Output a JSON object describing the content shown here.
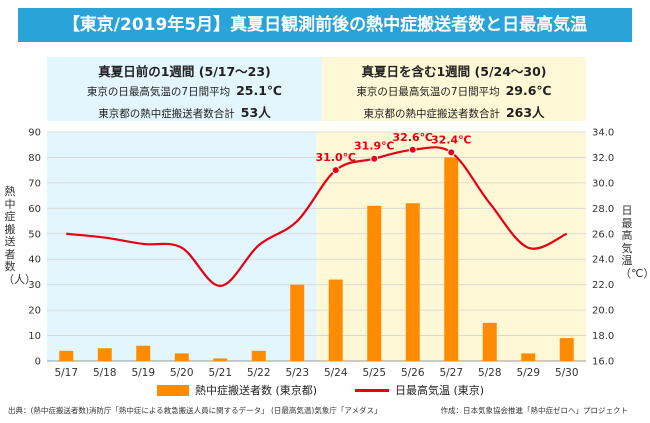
{
  "title": "【東京/2019年5月】真夏日観測前後の熱中症搬送者数と日最高気温",
  "panels": {
    "before": {
      "title": "真夏日前の1週間 (5/17〜23)",
      "temp_label": "東京の日最高気温の7日間平均",
      "temp_value": "25.1℃",
      "count_label": "東京都の熱中症搬送者数合計",
      "count_value": "53人"
    },
    "after": {
      "title": "真夏日を含む1週間 (5/24〜30)",
      "temp_label": "東京の日最高気温の7日間平均",
      "temp_value": "29.6℃",
      "count_label": "東京都の熱中症搬送者数合計",
      "count_value": "263人"
    }
  },
  "chart_data": {
    "type": "bar",
    "categories": [
      "5/17",
      "5/18",
      "5/19",
      "5/20",
      "5/21",
      "5/22",
      "5/23",
      "5/24",
      "5/25",
      "5/26",
      "5/27",
      "5/28",
      "5/29",
      "5/30"
    ],
    "series": [
      {
        "name": "熱中症搬送者数 (東京都)",
        "type": "bar",
        "axis": "left",
        "values": [
          4,
          5,
          6,
          3,
          1,
          4,
          30,
          32,
          61,
          62,
          80,
          15,
          3,
          9
        ]
      },
      {
        "name": "日最高気温 (東京)",
        "type": "line",
        "axis": "right",
        "values": [
          26.0,
          25.7,
          25.2,
          24.9,
          21.9,
          25.1,
          27.0,
          31.0,
          31.9,
          32.6,
          32.4,
          28.4,
          24.9,
          26.0
        ]
      }
    ],
    "ylabel": "熱中症搬送者数（人）",
    "y2label": "日最高気温（℃）",
    "ylim": [
      0,
      90
    ],
    "y2lim": [
      16.0,
      34.0
    ],
    "yticks": [
      "0",
      "10",
      "20",
      "30",
      "40",
      "50",
      "60",
      "70",
      "80",
      "90"
    ],
    "y2ticks": [
      "16.0",
      "18.0",
      "20.0",
      "22.0",
      "24.0",
      "26.0",
      "28.0",
      "30.0",
      "32.0",
      "34.0"
    ],
    "annotations": [
      {
        "index": 7,
        "text": "31.0℃"
      },
      {
        "index": 8,
        "text": "31.9℃"
      },
      {
        "index": 9,
        "text": "32.6℃"
      },
      {
        "index": 10,
        "text": "32.4℃"
      }
    ],
    "shading": [
      {
        "from": 0,
        "to": 6,
        "color": "#e3f6fd"
      },
      {
        "from": 7,
        "to": 13,
        "color": "#fff8d6"
      }
    ],
    "grid": true,
    "legend_position": "bottom",
    "colors": {
      "bar": "#ff8c00",
      "line": "#e60012",
      "title_bg": "#2aa3d8"
    }
  },
  "source_left": "出典：(熱中症搬送者数)消防庁「熱中症による救急搬送人員に関するデータ」 (日最高気温)気象庁「アメダス」",
  "source_right": "作成：日本気象協会推進「熱中症ゼロへ」プロジェクト"
}
